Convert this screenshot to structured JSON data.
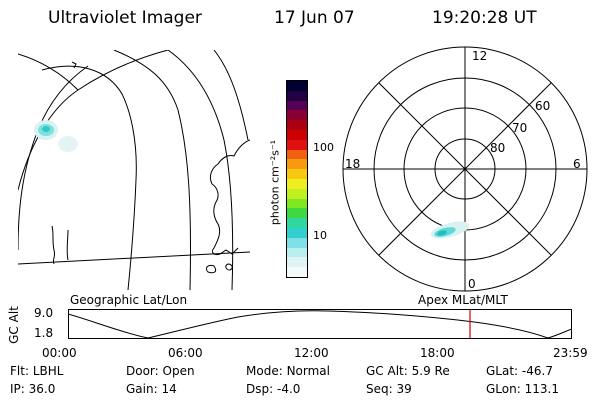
{
  "header": {
    "instrument": "Ultraviolet Imager",
    "date": "17 Jun 07",
    "time": "19:20:28 UT"
  },
  "colorbar": {
    "unit_label": "photon cm⁻²s⁻¹",
    "ticks": [
      "100",
      "10"
    ],
    "colors": [
      "#000033",
      "#220044",
      "#550055",
      "#880033",
      "#aa0011",
      "#cc0000",
      "#e01010",
      "#f06010",
      "#f89a10",
      "#f8c810",
      "#f0ee20",
      "#c0f020",
      "#80e820",
      "#40d840",
      "#30d8a0",
      "#30d0d0",
      "#80e0e8",
      "#b8eef0",
      "#dff5f5",
      "#f2fafa"
    ]
  },
  "geo_map": {
    "label": "Geographic Lat/Lon"
  },
  "polar_plot": {
    "label": "Apex MLat/MLT",
    "mlt_labels": {
      "top": "12",
      "left": "18",
      "right": "6",
      "bottom": "0"
    },
    "lat_labels": [
      "60",
      "70",
      "80"
    ]
  },
  "orbit_plot": {
    "y_label": "GC Alt",
    "y_ticks": [
      "9.0",
      "1.8"
    ],
    "x_ticks": [
      "00:00",
      "06:00",
      "12:00",
      "18:00",
      "23:59"
    ],
    "marker_color": "#cc0000"
  },
  "status": {
    "row1": [
      {
        "key": "Flt:",
        "value": "LBHL"
      },
      {
        "key": "Door:",
        "value": "Open"
      },
      {
        "key": "Mode:",
        "value": "Normal"
      },
      {
        "key": "GC Alt:",
        "value": "5.9 Re"
      },
      {
        "key": "GLat:",
        "value": "-46.7"
      }
    ],
    "row2": [
      {
        "key": "IP:",
        "value": "36.0"
      },
      {
        "key": "Gain:",
        "value": "14"
      },
      {
        "key": "Dsp:",
        "value": "-4.0"
      },
      {
        "key": "Seq:",
        "value": "39"
      },
      {
        "key": "GLon:",
        "value": "113.1"
      }
    ]
  }
}
